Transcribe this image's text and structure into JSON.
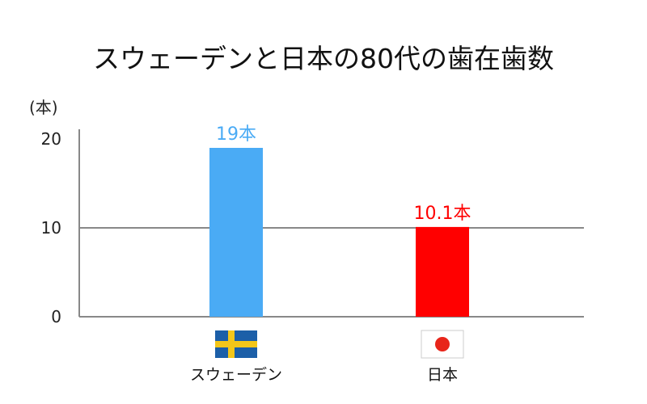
{
  "chart_data": {
    "type": "bar",
    "title": "スウェーデンと日本の80代の歯在歯数",
    "unit": "(本)",
    "categories": [
      "スウェーデン",
      "日本"
    ],
    "values": [
      19,
      10.1
    ],
    "data_labels": [
      "19本",
      "10.1本"
    ],
    "colors": [
      "#4aabf5",
      "#ff0000"
    ],
    "category_icons": [
      "sweden-flag-icon",
      "japan-flag-icon"
    ],
    "ylim": [
      0,
      20
    ],
    "yticks": [
      {
        "value": 0,
        "label": "0"
      },
      {
        "value": 10,
        "label": "10"
      },
      {
        "value": 20,
        "label": "20"
      }
    ],
    "grid": true,
    "legend": false
  }
}
